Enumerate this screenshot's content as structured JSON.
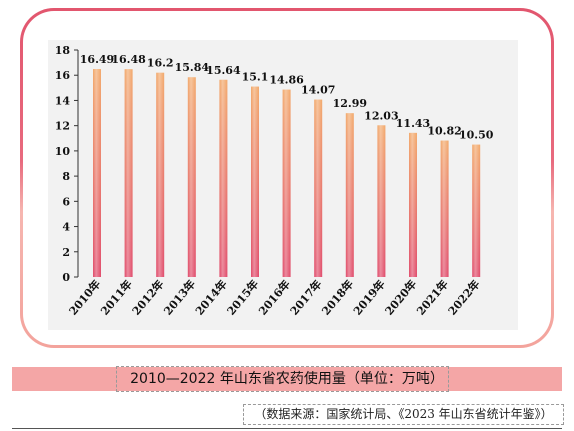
{
  "caption": "2010—2022 年山东省农药使用量（单位：万吨）",
  "source": "（数据来源：国家统计局、《2023 年山东省统计年鉴》）",
  "colors": {
    "bar_top": "#f2a86a",
    "bar_bottom": "#e04a6a",
    "frame_top": "#e2566e",
    "frame_bottom": "#f3a39c",
    "caption_bg": "#f4a6a6",
    "plot_bg": "#f2f2f2"
  },
  "chart_data": {
    "type": "bar",
    "title": "",
    "xlabel": "",
    "ylabel": "",
    "categories": [
      "2010年",
      "2011年",
      "2012年",
      "2013年",
      "2014年",
      "2015年",
      "2016年",
      "2017年",
      "2018年",
      "2019年",
      "2020年",
      "2021年",
      "2022年"
    ],
    "values": [
      16.49,
      16.48,
      16.2,
      15.84,
      15.64,
      15.1,
      14.86,
      14.07,
      12.99,
      12.03,
      11.43,
      10.82,
      10.5
    ],
    "value_labels": [
      "16.49",
      "16.48",
      "16.2",
      "15.84",
      "15.64",
      "15.1",
      "14.86",
      "14.07",
      "12.99",
      "12.03",
      "11.43",
      "10.82",
      "10.50"
    ],
    "ylim": [
      0,
      18
    ],
    "yticks": [
      "0",
      "2",
      "4",
      "6",
      "8",
      "10",
      "12",
      "14",
      "16",
      "18"
    ],
    "grid": false,
    "legend": "none"
  }
}
